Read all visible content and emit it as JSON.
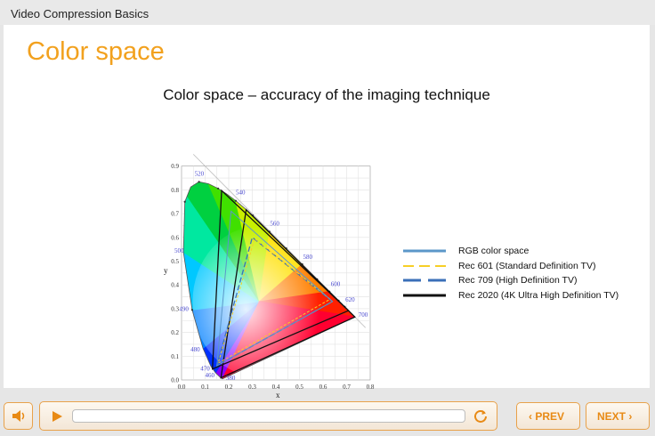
{
  "window": {
    "title": "Video Compression Basics"
  },
  "slide": {
    "title": "Color space",
    "subtitle": "Color space – accuracy of the imaging technique"
  },
  "diagram": {
    "x_axis_label": "x",
    "y_axis_label": "y",
    "x_ticks": [
      "0.0",
      "0.1",
      "0.2",
      "0.3",
      "0.4",
      "0.5",
      "0.6",
      "0.7",
      "0.8"
    ],
    "y_ticks": [
      "0.0",
      "0.1",
      "0.2",
      "0.3",
      "0.4",
      "0.5",
      "0.6",
      "0.7",
      "0.8",
      "0.9"
    ],
    "wavelength_labels": [
      "380",
      "460",
      "470",
      "480",
      "490",
      "500",
      "520",
      "540",
      "560",
      "580",
      "600",
      "620",
      "700"
    ],
    "locus_colors": [
      "#8a00ff",
      "#0030ff",
      "#0080ff",
      "#00c8ff",
      "#00e8a0",
      "#00d040",
      "#40e000",
      "#c8f000",
      "#ffe000",
      "#ff8000",
      "#ff2000",
      "#ff0030"
    ]
  },
  "legend": {
    "items": [
      {
        "label": "RGB color space",
        "color": "#5b97c9",
        "style": "solid"
      },
      {
        "label": "Rec 601 (Standard Definition TV)",
        "color": "#f7cf26",
        "style": "dashed"
      },
      {
        "label": "Rec 709 (High Definition TV)",
        "color": "#3a6fb8",
        "style": "dashed"
      },
      {
        "label": "Rec 2020 (4K Ultra High Definition TV)",
        "color": "#111111",
        "style": "solid"
      }
    ]
  },
  "player": {
    "prev_label": "‹ PREV",
    "next_label": "NEXT ›",
    "progress_percent": 0,
    "icons": [
      "speaker-icon",
      "play-icon",
      "replay-icon"
    ]
  }
}
